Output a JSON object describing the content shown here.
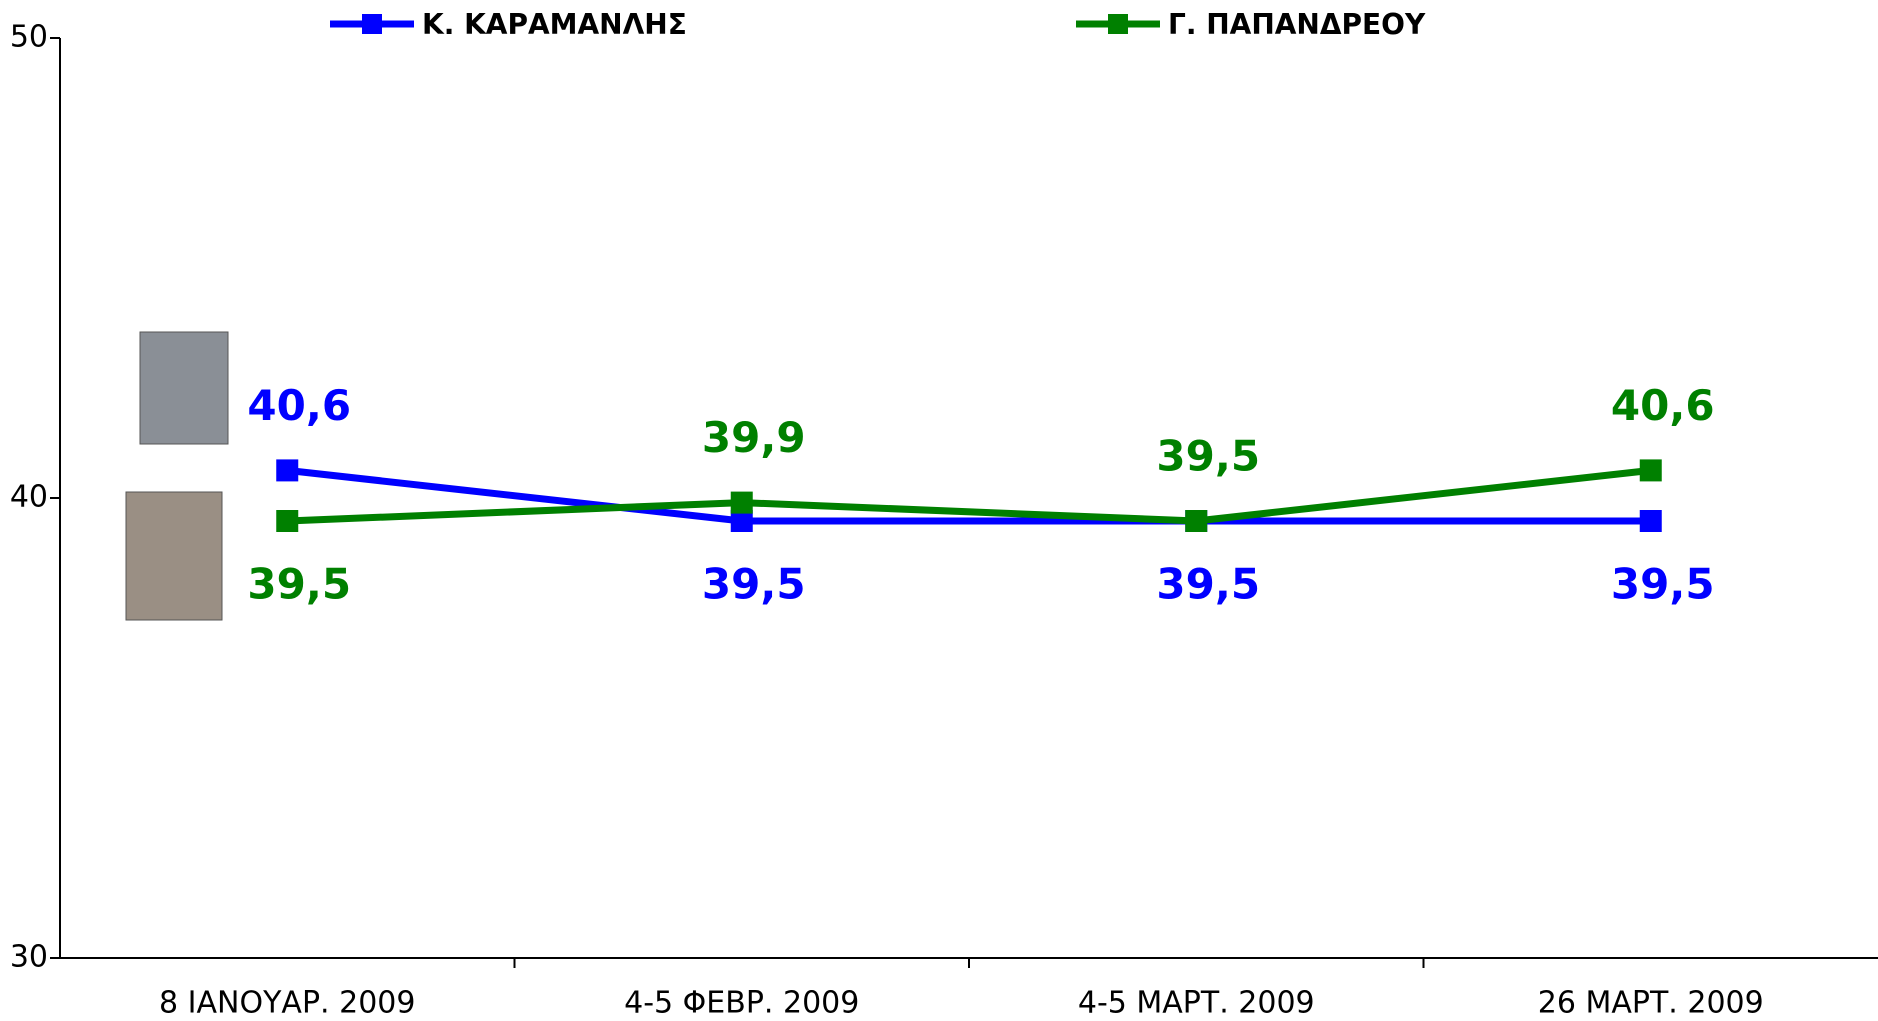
{
  "chart_data": {
    "type": "line",
    "categories": [
      "8 ΙΑΝΟΥΑΡ. 2009",
      "4-5 ΦΕΒΡ. 2009",
      "4-5 ΜΑΡΤ. 2009",
      "26 ΜΑΡΤ. 2009"
    ],
    "series": [
      {
        "name": "Κ. ΚΑΡΑΜΑΝΛΗΣ",
        "color": "#0000ff",
        "values": [
          40.6,
          39.5,
          39.5,
          39.5
        ],
        "value_labels": [
          "40,6",
          "39,5",
          "39,5",
          "39,5"
        ]
      },
      {
        "name": "Γ. ΠΑΠΑΝΔΡΕΟΥ",
        "color": "#008000",
        "values": [
          39.5,
          39.9,
          39.5,
          40.6
        ],
        "value_labels": [
          "39,5",
          "39,9",
          "39,5",
          "40,6"
        ]
      }
    ],
    "ylim": [
      30,
      50
    ],
    "yticks": [
      30,
      40,
      50
    ],
    "grid": false,
    "legend": "top"
  }
}
